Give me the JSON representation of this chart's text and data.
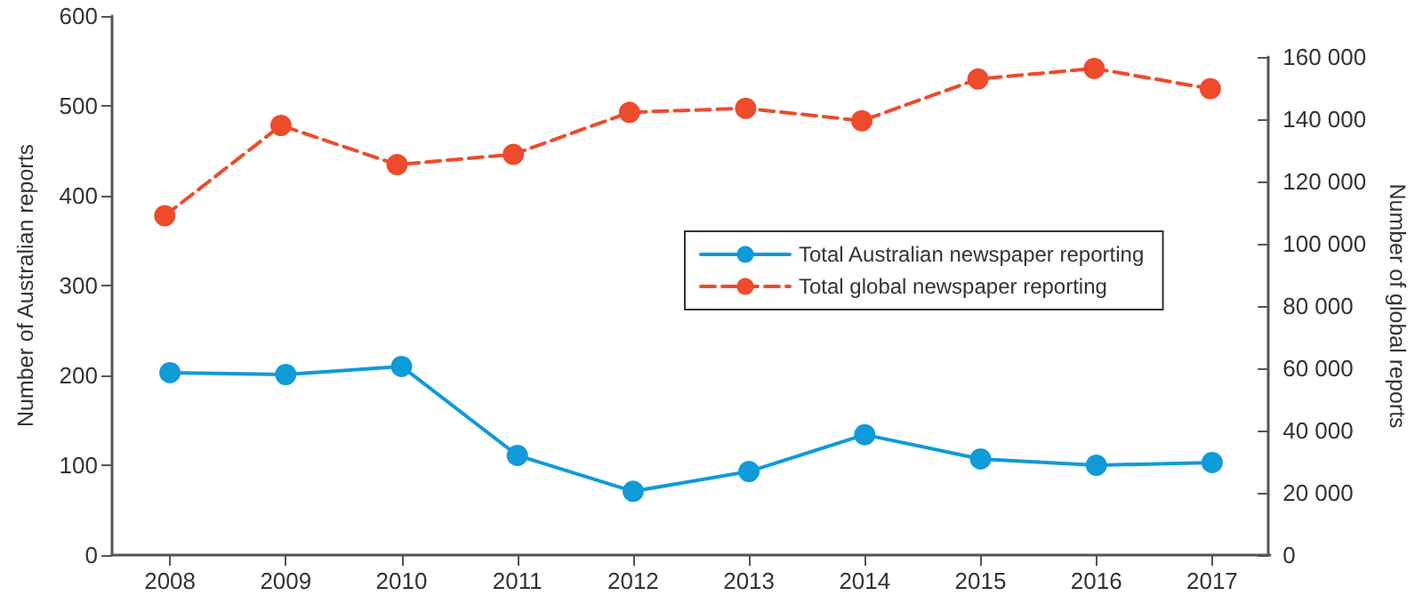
{
  "chart_data": {
    "type": "line",
    "categories": [
      "2008",
      "2009",
      "2010",
      "2011",
      "2012",
      "2013",
      "2014",
      "2015",
      "2016",
      "2017"
    ],
    "ylabel": "Number of Australian reports",
    "y2label": "Number of global reports",
    "ylim": [
      0,
      600
    ],
    "yticks": [
      0,
      100,
      200,
      300,
      400,
      500,
      600
    ],
    "y2lim": [
      0,
      160000
    ],
    "y2ticks": [
      {
        "value": 0,
        "label": "0"
      },
      {
        "value": 20000,
        "label": "20 000"
      },
      {
        "value": 40000,
        "label": "40 000"
      },
      {
        "value": 60000,
        "label": "60 000"
      },
      {
        "value": 80000,
        "label": "80 000"
      },
      {
        "value": 100000,
        "label": "100 000"
      },
      {
        "value": 120000,
        "label": "120 000"
      },
      {
        "value": 140000,
        "label": "140 000"
      },
      {
        "value": 160000,
        "label": "160 000"
      }
    ],
    "series": [
      {
        "name": "Total Australian newspaper reporting",
        "color": "#0f9ad8",
        "line_style": "solid",
        "values": [
          203,
          201,
          210,
          111,
          71,
          93,
          134,
          107,
          100,
          103
        ]
      },
      {
        "name": "Total global newspaper reporting",
        "color": "#ee4a2c",
        "line_style": "dashed",
        "axis": "y2",
        "values": [
          109000,
          138000,
          125400,
          128700,
          142200,
          143500,
          139500,
          152900,
          156300,
          149800
        ]
      }
    ],
    "marker": "circle",
    "grid": false,
    "legend": "right"
  }
}
